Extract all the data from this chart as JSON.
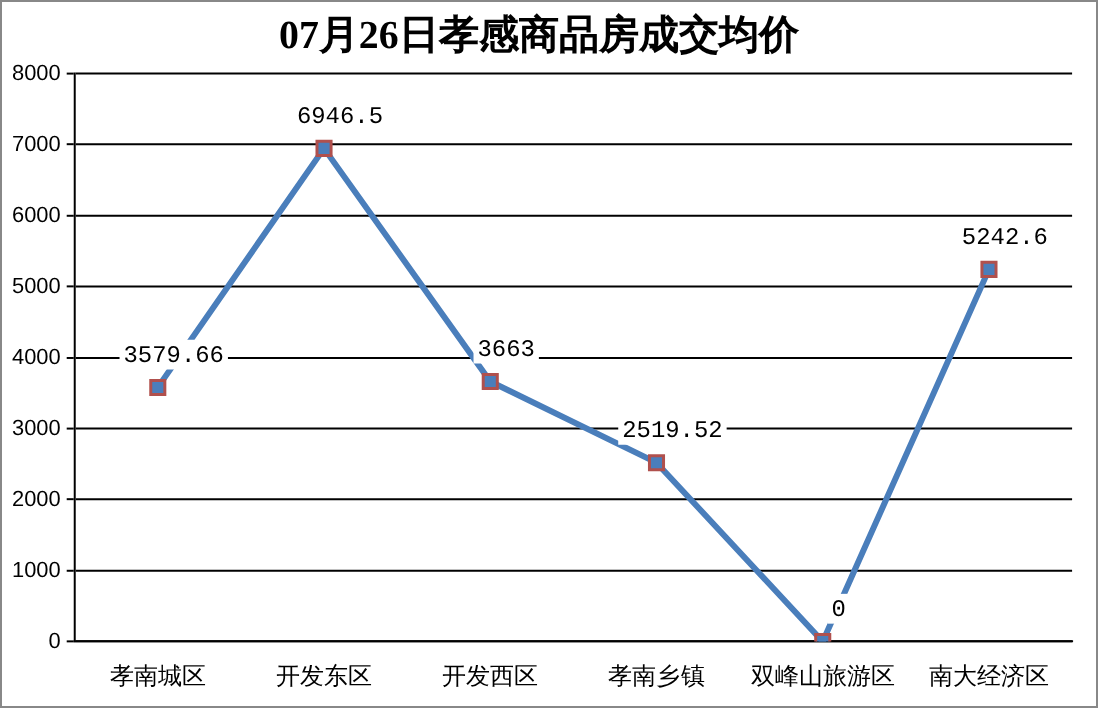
{
  "chart_data": {
    "type": "line",
    "title": "07月26日孝感商品房成交均价",
    "categories": [
      "孝南城区",
      "开发东区",
      "开发西区",
      "孝南乡镇",
      "双峰山旅游区",
      "南大经济区"
    ],
    "series": [
      {
        "color": "#4a7ebb",
        "values": [
          3579.66,
          6946.5,
          3663,
          2519.52,
          0,
          5242.6
        ]
      }
    ],
    "ylim": [
      0,
      8000
    ],
    "yticks": [
      0,
      1000,
      2000,
      3000,
      4000,
      5000,
      6000,
      7000,
      8000
    ],
    "grid": "y",
    "legend": false,
    "marker": "square",
    "line_style": "solid",
    "data_labels": true
  }
}
